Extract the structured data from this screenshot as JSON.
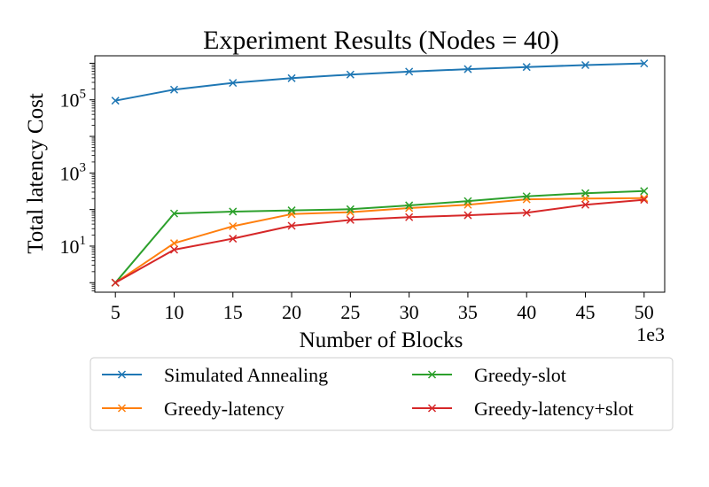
{
  "chart_data": {
    "type": "line",
    "title": "Experiment Results (Nodes = 40)",
    "xlabel": "Number of Blocks",
    "ylabel": "Total latency Cost",
    "x_offset_text": "1e3",
    "y_scale": "log",
    "x": [
      5,
      10,
      15,
      20,
      25,
      30,
      35,
      40,
      45,
      50
    ],
    "x_ticks": [
      5,
      10,
      15,
      20,
      25,
      30,
      35,
      40,
      45,
      50
    ],
    "y_ticks": [
      {
        "base": "10",
        "exp": "1",
        "value": 10
      },
      {
        "base": "10",
        "exp": "3",
        "value": 1000
      },
      {
        "base": "10",
        "exp": "5",
        "value": 100000
      }
    ],
    "xlim": [
      3.25,
      51.75
    ],
    "ylim": [
      0.55,
      1600000
    ],
    "grid": false,
    "legend_position": "below",
    "marker": "x",
    "series": [
      {
        "name": "Simulated Annealing",
        "color": "#1f77b4",
        "values": [
          95000,
          190000,
          290000,
          390000,
          490000,
          590000,
          690000,
          790000,
          890000,
          990000
        ]
      },
      {
        "name": "Greedy-latency",
        "color": "#ff7f0e",
        "values": [
          1,
          12,
          35,
          75,
          85,
          110,
          135,
          190,
          200,
          205
        ]
      },
      {
        "name": "Greedy-slot",
        "color": "#2ca02c",
        "values": [
          1,
          78,
          88,
          95,
          102,
          130,
          170,
          230,
          280,
          320
        ]
      },
      {
        "name": "Greedy-latency+slot",
        "color": "#d62728",
        "values": [
          1,
          8,
          16,
          36,
          52,
          62,
          70,
          82,
          135,
          185
        ]
      }
    ]
  }
}
